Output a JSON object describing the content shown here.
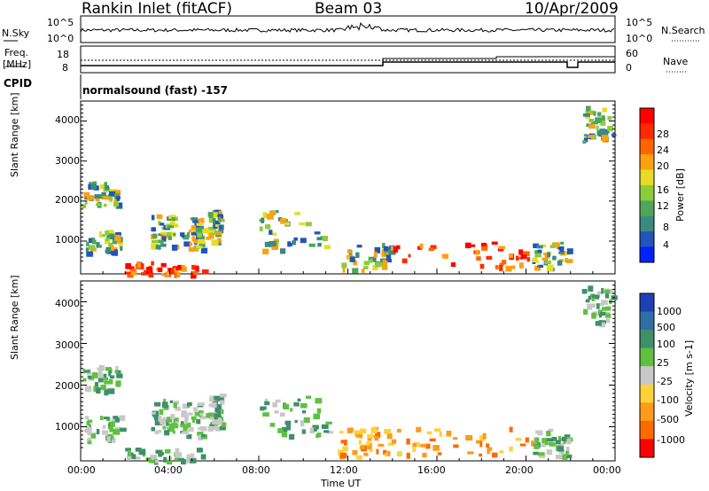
{
  "header": {
    "station": "Rankin Inlet (fitACF)",
    "beam": "Beam 03",
    "date": "10/Apr/2009"
  },
  "top_panels": {
    "nsky_label": "N.Sky",
    "nsky_ticks": [
      "10^5",
      "10^0"
    ],
    "nsearch_label": "N.Search",
    "nsearch_ticks": [
      "10^5",
      "10^0"
    ],
    "freq_label_line1": "Freq.",
    "freq_label_line2": "[MHz]",
    "freq_ticks": [
      "18",
      "8"
    ],
    "nave_label": "Nave",
    "nave_ticks": [
      "60",
      "0"
    ],
    "cpid_label": "CPID",
    "cpid_text": "normalsound (fast) -157"
  },
  "chart_data": [
    {
      "type": "heatmap",
      "name": "power",
      "xlabel": "",
      "ylabel": "Slant Range [km]",
      "xlim_hours": [
        0,
        24
      ],
      "ylim": [
        180,
        4500
      ],
      "yticks": [
        "1000",
        "2000",
        "3000",
        "4000"
      ],
      "colorbar_label": "Power [dB]",
      "colorbar_ticks": [
        "4",
        "8",
        "12",
        "16",
        "20",
        "24",
        "28"
      ],
      "colorbar_colors": [
        "#0022ff",
        "#2255b8",
        "#3a8a82",
        "#4fa65a",
        "#8ccc3a",
        "#e6dc28",
        "#ffa010",
        "#ff6400",
        "#ff2a00",
        "#ff0000"
      ]
    },
    {
      "type": "heatmap",
      "name": "velocity",
      "xlabel": "Time UT",
      "ylabel": "Slant Range [km]",
      "xlim_hours": [
        0,
        24
      ],
      "ylim": [
        180,
        4500
      ],
      "xticks": [
        "00:00",
        "04:00",
        "08:00",
        "12:00",
        "16:00",
        "20:00",
        "00:00"
      ],
      "yticks": [
        "1000",
        "2000",
        "3000",
        "4000"
      ],
      "colorbar_label": "Velocity [m s-1]",
      "colorbar_ticks": [
        "1000",
        "500",
        "100",
        "25",
        "-25",
        "-100",
        "-500",
        "-1000"
      ],
      "colorbar_colors": [
        "#1f3fb5",
        "#2f6fa5",
        "#3f8f6a",
        "#5fc040",
        "#c8c8c8",
        "#ffd23a",
        "#ff9a1a",
        "#ff6a00",
        "#ff0000"
      ]
    }
  ]
}
